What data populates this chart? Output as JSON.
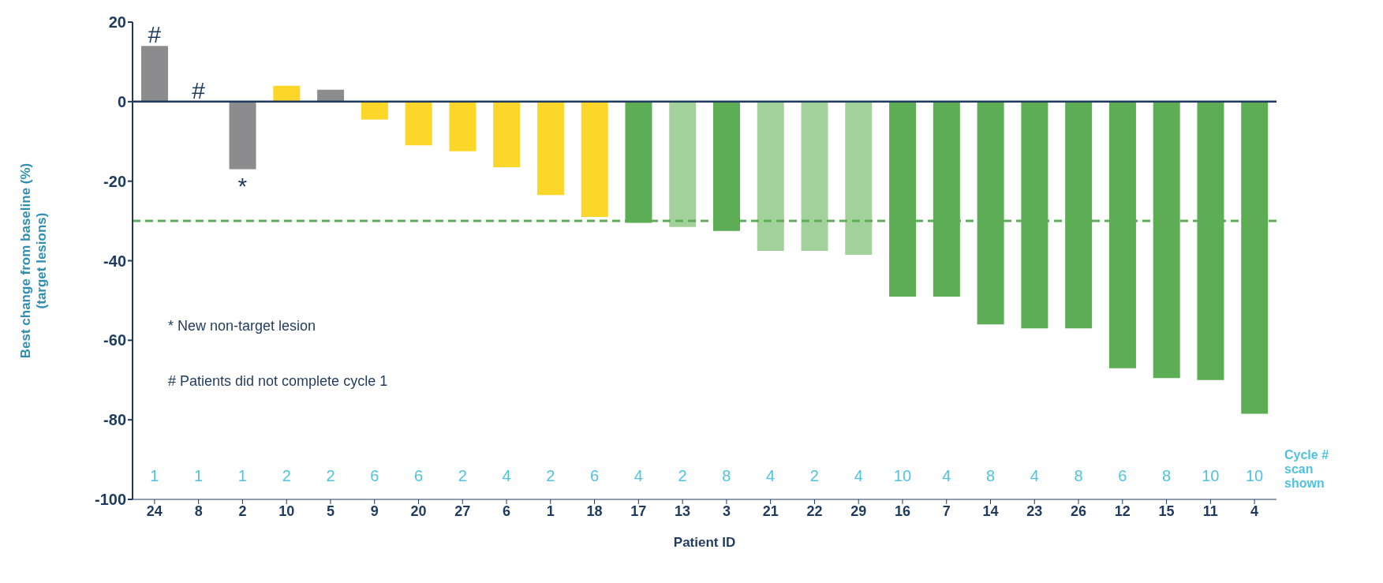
{
  "chart_data": {
    "type": "bar",
    "xlabel": "Patient ID",
    "ylabel": "Best change from baseline (%)\n(target lesions)",
    "categories": [
      "24",
      "8",
      "2",
      "10",
      "5",
      "9",
      "20",
      "27",
      "6",
      "1",
      "18",
      "17",
      "13",
      "3",
      "21",
      "22",
      "29",
      "16",
      "7",
      "14",
      "23",
      "26",
      "12",
      "15",
      "11",
      "4"
    ],
    "values": [
      14,
      0,
      -17,
      4,
      3,
      -4.5,
      -11,
      -12.5,
      -16.5,
      -23.5,
      -29,
      -30.5,
      -31.5,
      -32.5,
      -37.5,
      -37.5,
      -38.5,
      -49,
      -49,
      -56,
      -57,
      -57,
      -67,
      -69.5,
      -70,
      -78.5
    ],
    "colors": [
      "#8c8c8e",
      "#8c8c8e",
      "#8c8c8e",
      "#fdd62a",
      "#8c8c8e",
      "#fdd62a",
      "#fdd62a",
      "#fdd62a",
      "#fdd62a",
      "#fdd62a",
      "#fdd62a",
      "#5cad55",
      "#a3d19c",
      "#5cad55",
      "#a3d19c",
      "#a3d19c",
      "#a3d19c",
      "#5cad55",
      "#5cad55",
      "#5cad55",
      "#5cad55",
      "#5cad55",
      "#5cad55",
      "#5cad55",
      "#5cad55",
      "#5cad55"
    ],
    "ylim": [
      -100,
      20
    ],
    "yticks": [
      -100,
      -80,
      -60,
      -40,
      -20,
      0,
      20
    ],
    "ref_lines": [
      {
        "axis": "y",
        "value": 0,
        "color": "#1f3a5f",
        "line_style": "solid"
      },
      {
        "axis": "y",
        "value": -30,
        "color": "#5cad55",
        "line_style": "dashed"
      }
    ],
    "annotations": [
      "* New non-target lesion",
      "# Patients did not complete cycle 1",
      "Cycle # scan shown",
      "1",
      "1",
      "1",
      "2",
      "2",
      "6",
      "6",
      "2",
      "4",
      "2",
      "6",
      "4",
      "2",
      "8",
      "4",
      "2",
      "4",
      "10",
      "4",
      "8",
      "4",
      "8",
      "6",
      "8",
      "10",
      "10",
      {
        "text": "#",
        "x": "24",
        "y": 14
      },
      {
        "text": "#",
        "x": "8",
        "y": 0
      },
      {
        "text": "*",
        "x": "2",
        "y": -17
      }
    ]
  }
}
